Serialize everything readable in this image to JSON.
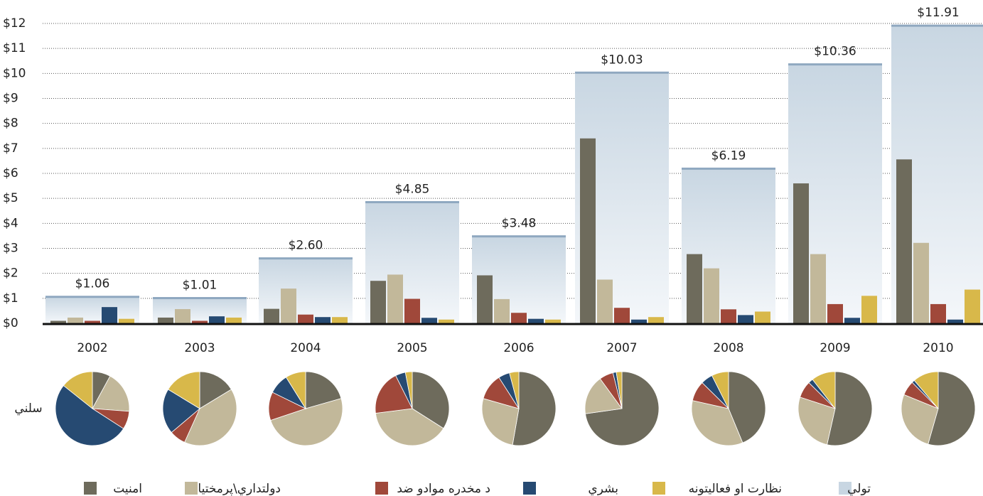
{
  "chart_data": {
    "type": "bar",
    "categories": [
      "2002",
      "2003",
      "2004",
      "2005",
      "2006",
      "2007",
      "2008",
      "2009",
      "2010"
    ],
    "series": [
      {
        "name": "امنیت",
        "color": "#6e6b5c",
        "values": [
          0.1,
          0.23,
          0.58,
          1.7,
          1.92,
          7.4,
          2.77,
          5.6,
          6.56
        ]
      },
      {
        "name": "دولتداري\\پرمختيا",
        "color": "#c2b89a",
        "values": [
          0.23,
          0.57,
          1.39,
          1.95,
          0.97,
          1.75,
          2.2,
          2.77,
          3.22
        ]
      },
      {
        "name": "د مخدره موادو ضد",
        "color": "#a0483a",
        "values": [
          0.1,
          0.1,
          0.35,
          0.98,
          0.42,
          0.62,
          0.56,
          0.77,
          0.77
        ]
      },
      {
        "name": "بشري",
        "color": "#264a72",
        "values": [
          0.65,
          0.28,
          0.25,
          0.22,
          0.18,
          0.15,
          0.33,
          0.22,
          0.15
        ]
      },
      {
        "name": "نظارت او فعالیتونه",
        "color": "#d8b84a",
        "values": [
          0.18,
          0.23,
          0.25,
          0.15,
          0.15,
          0.25,
          0.47,
          1.1,
          1.35
        ]
      },
      {
        "name": "تولي",
        "color": "#c8d6e2",
        "values": [
          1.06,
          1.01,
          2.6,
          4.85,
          3.48,
          10.03,
          6.19,
          10.36,
          11.91
        ],
        "value_labels": [
          "$1.06",
          "$1.01",
          "$2.60",
          "$4.85",
          "$3.48",
          "$10.03",
          "$6.19",
          "$10.36",
          "$11.91"
        ]
      }
    ],
    "ylim": [
      0,
      12
    ],
    "yticks": [
      {
        "value": 0,
        "label": "$0"
      },
      {
        "value": 1,
        "label": "$1"
      },
      {
        "value": 2,
        "label": "$2"
      },
      {
        "value": 3,
        "label": "$3"
      },
      {
        "value": 4,
        "label": "$4"
      },
      {
        "value": 5,
        "label": "$5"
      },
      {
        "value": 6,
        "label": "$6"
      },
      {
        "value": 7,
        "label": "$7"
      },
      {
        "value": 8,
        "label": "$8"
      },
      {
        "value": 9,
        "label": "$9"
      },
      {
        "value": 10,
        "label": "$10"
      },
      {
        "value": 11,
        "label": "$11"
      },
      {
        "value": 12,
        "label": "$12"
      }
    ],
    "grid": true,
    "pie_label": "سلني"
  }
}
